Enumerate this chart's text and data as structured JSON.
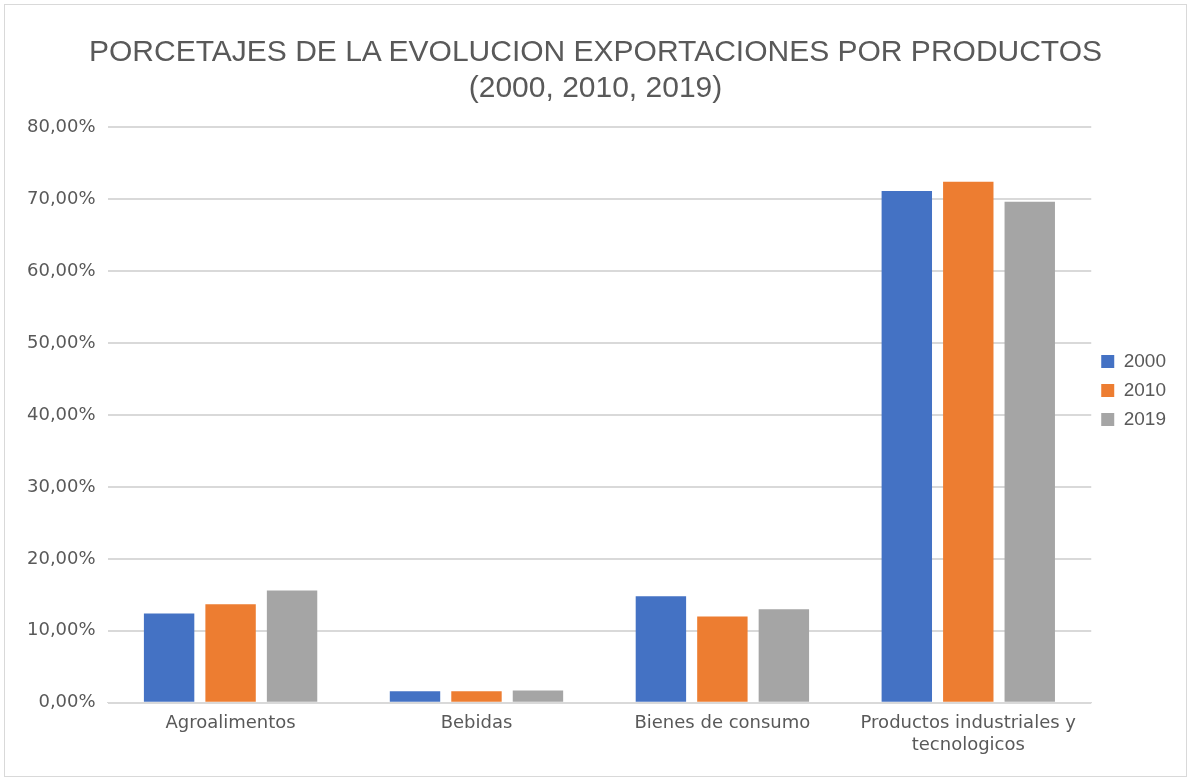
{
  "chart_data": {
    "type": "bar",
    "title": "PORCETAJES DE LA EVOLUCION EXPORTACIONES POR PRODUCTOS (2000, 2010, 2019)",
    "categories": [
      "Agroalimentos",
      "Bebidas",
      "Bienes de consumo",
      "Productos industriales y tecnologicos"
    ],
    "series": [
      {
        "name": "2000",
        "color": "#4472c4",
        "values": [
          12.4,
          1.6,
          14.8,
          71.1
        ]
      },
      {
        "name": "2010",
        "color": "#ed7d31",
        "values": [
          13.7,
          1.6,
          12.0,
          72.4
        ]
      },
      {
        "name": "2019",
        "color": "#a5a5a5",
        "values": [
          15.6,
          1.7,
          13.0,
          69.6
        ]
      }
    ],
    "ylim": [
      0,
      80
    ],
    "yticks": [
      {
        "value": 0,
        "label": "0,00%"
      },
      {
        "value": 10,
        "label": "10,00%"
      },
      {
        "value": 20,
        "label": "20,00%"
      },
      {
        "value": 30,
        "label": "30,00%"
      },
      {
        "value": 40,
        "label": "40,00%"
      },
      {
        "value": 50,
        "label": "50,00%"
      },
      {
        "value": 60,
        "label": "60,00%"
      },
      {
        "value": 70,
        "label": "70,00%"
      },
      {
        "value": 80,
        "label": "80,00%"
      }
    ],
    "grid": "y",
    "legend": "right"
  }
}
